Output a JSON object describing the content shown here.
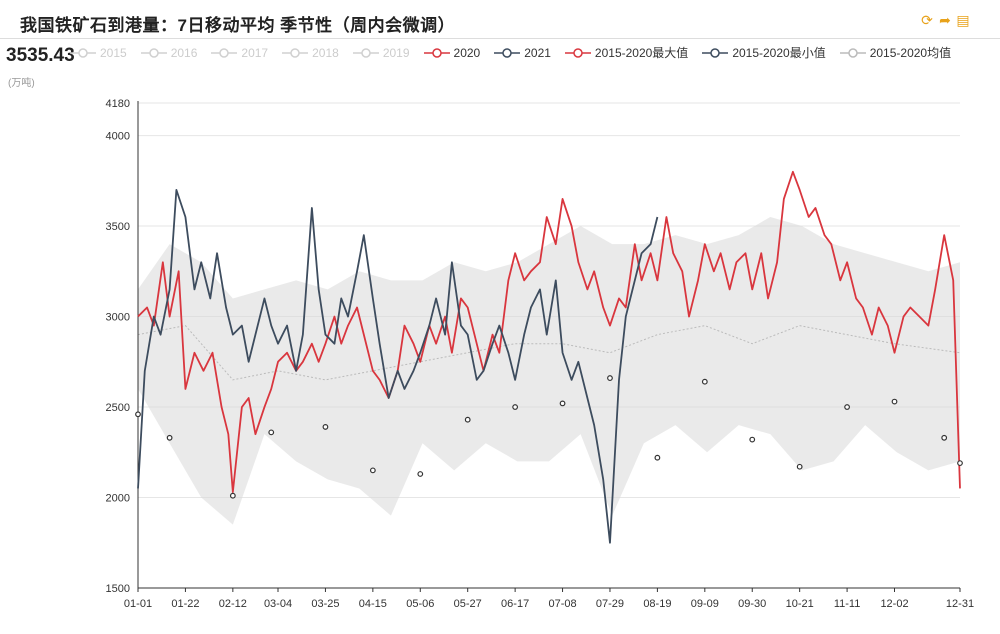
{
  "header": {
    "title": "我国铁矿石到港量：7日移动平均 季节性（周内会微调）",
    "current_value": "3535.43",
    "unit": "(万吨)"
  },
  "colors": {
    "series_2020": "#d9363e",
    "series_2021": "#3d4c5e",
    "max_line": "#d9363e",
    "min_line": "#3d4c5e",
    "avg_line": "#bbbbbb",
    "band": "#d8d8d8",
    "grid": "#e6e6e6",
    "toolbar": "#e8a21a"
  },
  "toolbar": [
    "refresh-icon",
    "share-icon",
    "download-icon"
  ],
  "legend": [
    {
      "label": "2015",
      "color": "#d0d0d0",
      "faded": true
    },
    {
      "label": "2016",
      "color": "#d0d0d0",
      "faded": true
    },
    {
      "label": "2017",
      "color": "#d0d0d0",
      "faded": true
    },
    {
      "label": "2018",
      "color": "#d0d0d0",
      "faded": true
    },
    {
      "label": "2019",
      "color": "#d0d0d0",
      "faded": true
    },
    {
      "label": "2020",
      "color": "#d9363e",
      "faded": false
    },
    {
      "label": "2021",
      "color": "#3d4c5e",
      "faded": false
    },
    {
      "label": "2015-2020最大值",
      "color": "#d9363e",
      "faded": false
    },
    {
      "label": "2015-2020最小值",
      "color": "#3d4c5e",
      "faded": false
    },
    {
      "label": "2015-2020均值",
      "color": "#bbbbbb",
      "faded": false
    }
  ],
  "chart_data": {
    "type": "line",
    "ylim": [
      1500,
      4180
    ],
    "yticks": [
      1500,
      2000,
      2500,
      3000,
      3500,
      4000,
      4180
    ],
    "x_ticks": [
      "01-01",
      "01-22",
      "02-12",
      "03-04",
      "03-25",
      "04-15",
      "05-06",
      "05-27",
      "06-17",
      "07-08",
      "07-29",
      "08-19",
      "09-09",
      "09-30",
      "10-21",
      "11-11",
      "12-02",
      "12-31"
    ],
    "series": [
      {
        "name": "2020",
        "color": "#d9363e",
        "points": [
          [
            "01-01",
            3000
          ],
          [
            "01-05",
            3050
          ],
          [
            "01-08",
            2950
          ],
          [
            "01-12",
            3300
          ],
          [
            "01-15",
            3000
          ],
          [
            "01-19",
            3250
          ],
          [
            "01-22",
            2600
          ],
          [
            "01-26",
            2800
          ],
          [
            "01-30",
            2700
          ],
          [
            "02-03",
            2800
          ],
          [
            "02-07",
            2500
          ],
          [
            "02-10",
            2350
          ],
          [
            "02-12",
            2030
          ],
          [
            "02-16",
            2500
          ],
          [
            "02-19",
            2550
          ],
          [
            "02-22",
            2350
          ],
          [
            "02-26",
            2500
          ],
          [
            "03-01",
            2600
          ],
          [
            "03-04",
            2750
          ],
          [
            "03-08",
            2800
          ],
          [
            "03-12",
            2700
          ],
          [
            "03-15",
            2750
          ],
          [
            "03-19",
            2850
          ],
          [
            "03-22",
            2750
          ],
          [
            "03-25",
            2850
          ],
          [
            "03-29",
            3000
          ],
          [
            "04-01",
            2850
          ],
          [
            "04-04",
            2950
          ],
          [
            "04-08",
            3050
          ],
          [
            "04-11",
            2900
          ],
          [
            "04-15",
            2700
          ],
          [
            "04-18",
            2650
          ],
          [
            "04-22",
            2550
          ],
          [
            "04-26",
            2700
          ],
          [
            "04-29",
            2950
          ],
          [
            "05-03",
            2850
          ],
          [
            "05-06",
            2750
          ],
          [
            "05-10",
            2950
          ],
          [
            "05-13",
            2850
          ],
          [
            "05-17",
            3000
          ],
          [
            "05-20",
            2800
          ],
          [
            "05-24",
            3100
          ],
          [
            "05-27",
            3050
          ],
          [
            "05-31",
            2850
          ],
          [
            "06-03",
            2700
          ],
          [
            "06-07",
            2900
          ],
          [
            "06-10",
            2800
          ],
          [
            "06-14",
            3200
          ],
          [
            "06-17",
            3350
          ],
          [
            "06-21",
            3200
          ],
          [
            "06-24",
            3250
          ],
          [
            "06-28",
            3300
          ],
          [
            "07-01",
            3550
          ],
          [
            "07-05",
            3400
          ],
          [
            "07-08",
            3650
          ],
          [
            "07-12",
            3500
          ],
          [
            "07-15",
            3300
          ],
          [
            "07-19",
            3150
          ],
          [
            "07-22",
            3250
          ],
          [
            "07-26",
            3050
          ],
          [
            "07-29",
            2950
          ],
          [
            "08-02",
            3100
          ],
          [
            "08-05",
            3050
          ],
          [
            "08-09",
            3400
          ],
          [
            "08-12",
            3200
          ],
          [
            "08-16",
            3350
          ],
          [
            "08-19",
            3200
          ],
          [
            "08-23",
            3550
          ],
          [
            "08-26",
            3350
          ],
          [
            "08-30",
            3250
          ],
          [
            "09-02",
            3000
          ],
          [
            "09-06",
            3200
          ],
          [
            "09-09",
            3400
          ],
          [
            "09-13",
            3250
          ],
          [
            "09-16",
            3350
          ],
          [
            "09-20",
            3150
          ],
          [
            "09-23",
            3300
          ],
          [
            "09-27",
            3350
          ],
          [
            "09-30",
            3150
          ],
          [
            "10-04",
            3350
          ],
          [
            "10-07",
            3100
          ],
          [
            "10-11",
            3300
          ],
          [
            "10-14",
            3650
          ],
          [
            "10-18",
            3800
          ],
          [
            "10-21",
            3700
          ],
          [
            "10-25",
            3550
          ],
          [
            "10-28",
            3600
          ],
          [
            "11-01",
            3450
          ],
          [
            "11-04",
            3400
          ],
          [
            "11-08",
            3200
          ],
          [
            "11-11",
            3300
          ],
          [
            "11-15",
            3100
          ],
          [
            "11-18",
            3050
          ],
          [
            "11-22",
            2900
          ],
          [
            "11-25",
            3050
          ],
          [
            "11-29",
            2950
          ],
          [
            "12-02",
            2800
          ],
          [
            "12-06",
            3000
          ],
          [
            "12-09",
            3050
          ],
          [
            "12-13",
            3000
          ],
          [
            "12-17",
            2950
          ],
          [
            "12-20",
            3150
          ],
          [
            "12-24",
            3450
          ],
          [
            "12-28",
            3200
          ],
          [
            "12-31",
            2050
          ]
        ]
      },
      {
        "name": "2021",
        "color": "#3d4c5e",
        "points": [
          [
            "01-01",
            2050
          ],
          [
            "01-04",
            2700
          ],
          [
            "01-08",
            3000
          ],
          [
            "01-11",
            2900
          ],
          [
            "01-15",
            3150
          ],
          [
            "01-18",
            3700
          ],
          [
            "01-22",
            3550
          ],
          [
            "01-26",
            3150
          ],
          [
            "01-29",
            3300
          ],
          [
            "02-02",
            3100
          ],
          [
            "02-05",
            3350
          ],
          [
            "02-09",
            3050
          ],
          [
            "02-12",
            2900
          ],
          [
            "02-16",
            2950
          ],
          [
            "02-19",
            2750
          ],
          [
            "02-22",
            2900
          ],
          [
            "02-26",
            3100
          ],
          [
            "03-01",
            2950
          ],
          [
            "03-04",
            2850
          ],
          [
            "03-08",
            2950
          ],
          [
            "03-12",
            2700
          ],
          [
            "03-15",
            2900
          ],
          [
            "03-19",
            3600
          ],
          [
            "03-22",
            3150
          ],
          [
            "03-25",
            2900
          ],
          [
            "03-29",
            2850
          ],
          [
            "04-01",
            3100
          ],
          [
            "04-04",
            3000
          ],
          [
            "04-08",
            3250
          ],
          [
            "04-11",
            3450
          ],
          [
            "04-15",
            3100
          ],
          [
            "04-18",
            2850
          ],
          [
            "04-22",
            2550
          ],
          [
            "04-26",
            2700
          ],
          [
            "04-29",
            2600
          ],
          [
            "05-03",
            2700
          ],
          [
            "05-06",
            2800
          ],
          [
            "05-10",
            2950
          ],
          [
            "05-13",
            3100
          ],
          [
            "05-17",
            2900
          ],
          [
            "05-20",
            3300
          ],
          [
            "05-24",
            2950
          ],
          [
            "05-27",
            2900
          ],
          [
            "05-31",
            2650
          ],
          [
            "06-03",
            2700
          ],
          [
            "06-07",
            2850
          ],
          [
            "06-10",
            2950
          ],
          [
            "06-14",
            2800
          ],
          [
            "06-17",
            2650
          ],
          [
            "06-21",
            2900
          ],
          [
            "06-24",
            3050
          ],
          [
            "06-28",
            3150
          ],
          [
            "07-01",
            2900
          ],
          [
            "07-05",
            3200
          ],
          [
            "07-08",
            2800
          ],
          [
            "07-12",
            2650
          ],
          [
            "07-15",
            2750
          ],
          [
            "07-19",
            2550
          ],
          [
            "07-22",
            2400
          ],
          [
            "07-26",
            2100
          ],
          [
            "07-29",
            1750
          ],
          [
            "08-02",
            2650
          ],
          [
            "08-05",
            3000
          ],
          [
            "08-09",
            3200
          ],
          [
            "08-12",
            3350
          ],
          [
            "08-16",
            3400
          ],
          [
            "08-19",
            3550
          ]
        ]
      }
    ],
    "band": {
      "name": "2015-2020 range",
      "color": "#d8d8d8",
      "upper": [
        [
          "01-01",
          3150
        ],
        [
          "01-15",
          3400
        ],
        [
          "01-29",
          3300
        ],
        [
          "02-12",
          3100
        ],
        [
          "02-26",
          3150
        ],
        [
          "03-12",
          3200
        ],
        [
          "03-26",
          3150
        ],
        [
          "04-09",
          3250
        ],
        [
          "04-23",
          3200
        ],
        [
          "05-07",
          3200
        ],
        [
          "05-21",
          3300
        ],
        [
          "06-04",
          3250
        ],
        [
          "06-18",
          3300
        ],
        [
          "07-02",
          3400
        ],
        [
          "07-16",
          3500
        ],
        [
          "07-30",
          3400
        ],
        [
          "08-13",
          3400
        ],
        [
          "08-27",
          3450
        ],
        [
          "09-10",
          3400
        ],
        [
          "09-24",
          3450
        ],
        [
          "10-08",
          3550
        ],
        [
          "10-22",
          3500
        ],
        [
          "11-05",
          3400
        ],
        [
          "11-19",
          3350
        ],
        [
          "12-03",
          3300
        ],
        [
          "12-17",
          3250
        ],
        [
          "12-31",
          3300
        ]
      ],
      "lower": [
        [
          "01-01",
          2600
        ],
        [
          "01-15",
          2300
        ],
        [
          "01-29",
          2000
        ],
        [
          "02-12",
          1850
        ],
        [
          "02-26",
          2350
        ],
        [
          "03-12",
          2200
        ],
        [
          "03-26",
          2100
        ],
        [
          "04-09",
          2050
        ],
        [
          "04-23",
          1900
        ],
        [
          "05-07",
          2300
        ],
        [
          "05-21",
          2150
        ],
        [
          "06-04",
          2300
        ],
        [
          "06-18",
          2200
        ],
        [
          "07-02",
          2200
        ],
        [
          "07-16",
          2350
        ],
        [
          "07-30",
          1900
        ],
        [
          "08-13",
          2300
        ],
        [
          "08-27",
          2400
        ],
        [
          "09-10",
          2250
        ],
        [
          "09-24",
          2400
        ],
        [
          "10-08",
          2350
        ],
        [
          "10-22",
          2150
        ],
        [
          "11-05",
          2200
        ],
        [
          "11-19",
          2400
        ],
        [
          "12-03",
          2250
        ],
        [
          "12-17",
          2150
        ],
        [
          "12-31",
          2200
        ]
      ]
    },
    "avg_line": [
      [
        "01-01",
        2900
      ],
      [
        "01-22",
        2950
      ],
      [
        "02-12",
        2650
      ],
      [
        "03-04",
        2700
      ],
      [
        "03-25",
        2650
      ],
      [
        "04-15",
        2700
      ],
      [
        "05-06",
        2750
      ],
      [
        "05-27",
        2800
      ],
      [
        "06-17",
        2850
      ],
      [
        "07-08",
        2850
      ],
      [
        "07-29",
        2800
      ],
      [
        "08-19",
        2900
      ],
      [
        "09-09",
        2950
      ],
      [
        "09-30",
        2850
      ],
      [
        "10-21",
        2950
      ],
      [
        "11-11",
        2900
      ],
      [
        "12-02",
        2850
      ],
      [
        "12-31",
        2800
      ]
    ],
    "markers": [
      [
        "01-01",
        2460
      ],
      [
        "01-15",
        2330
      ],
      [
        "02-12",
        2010
      ],
      [
        "03-01",
        2360
      ],
      [
        "03-25",
        2390
      ],
      [
        "04-15",
        2150
      ],
      [
        "05-06",
        2130
      ],
      [
        "05-27",
        2430
      ],
      [
        "06-17",
        2500
      ],
      [
        "07-08",
        2520
      ],
      [
        "07-29",
        2660
      ],
      [
        "08-19",
        2220
      ],
      [
        "09-09",
        2640
      ],
      [
        "09-30",
        2320
      ],
      [
        "10-21",
        2170
      ],
      [
        "11-11",
        2500
      ],
      [
        "12-02",
        2530
      ],
      [
        "12-24",
        2330
      ],
      [
        "12-31",
        2190
      ]
    ]
  }
}
